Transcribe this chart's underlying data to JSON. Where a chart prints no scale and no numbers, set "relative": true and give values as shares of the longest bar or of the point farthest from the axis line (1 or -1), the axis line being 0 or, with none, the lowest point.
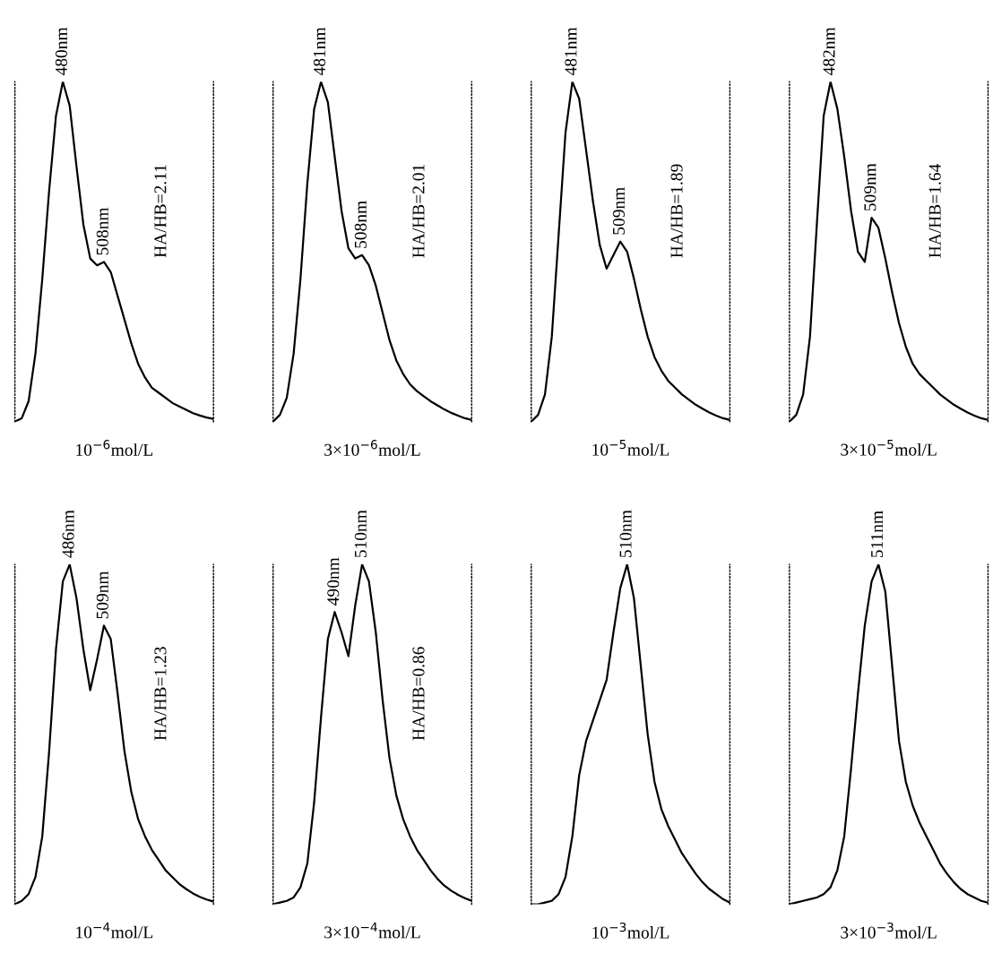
{
  "chart_data": [
    {
      "type": "line",
      "relative": true,
      "xlabel": "10$^{−6}$mol/L",
      "categories": [
        null,
        null,
        null,
        null,
        null,
        null,
        null,
        null,
        null,
        null,
        null,
        null,
        null,
        null,
        null,
        null,
        null,
        null,
        null,
        null,
        null,
        null,
        null,
        null,
        null,
        null,
        null,
        null,
        null,
        null
      ],
      "series": [
        {
          "color": "#000000",
          "values": [
            0,
            0.01,
            0.06,
            0.2,
            0.42,
            0.68,
            0.9,
            1.0,
            0.93,
            0.75,
            0.58,
            0.48,
            0.46,
            0.47,
            0.44,
            0.37,
            0.3,
            0.23,
            0.17,
            0.13,
            0.1,
            0.085,
            0.07,
            0.055,
            0.045,
            0.035,
            0.025,
            0.018,
            0.012,
            0.008
          ]
        }
      ],
      "annotations": [
        {
          "text": "480nm",
          "y": 1.0
        },
        {
          "text": "508nm",
          "y": 0.47
        },
        "HA/HB=2.11"
      ]
    },
    {
      "type": "line",
      "relative": true,
      "xlabel": "3×10$^{−6}$mol/L",
      "categories": [
        null,
        null,
        null,
        null,
        null,
        null,
        null,
        null,
        null,
        null,
        null,
        null,
        null,
        null,
        null,
        null,
        null,
        null,
        null,
        null,
        null,
        null,
        null,
        null,
        null,
        null,
        null,
        null,
        null,
        null
      ],
      "series": [
        {
          "color": "#000000",
          "values": [
            0,
            0.02,
            0.07,
            0.2,
            0.42,
            0.7,
            0.92,
            1.0,
            0.94,
            0.78,
            0.62,
            0.51,
            0.48,
            0.49,
            0.46,
            0.4,
            0.32,
            0.24,
            0.18,
            0.14,
            0.11,
            0.09,
            0.075,
            0.06,
            0.048,
            0.036,
            0.026,
            0.018,
            0.01,
            0.005
          ]
        }
      ],
      "annotations": [
        {
          "text": "481nm",
          "y": 1.0
        },
        {
          "text": "508nm",
          "y": 0.49
        },
        "HA/HB=2.01"
      ]
    },
    {
      "type": "line",
      "relative": true,
      "xlabel": "10$^{−5}$mol/L",
      "categories": [
        null,
        null,
        null,
        null,
        null,
        null,
        null,
        null,
        null,
        null,
        null,
        null,
        null,
        null,
        null,
        null,
        null,
        null,
        null,
        null,
        null,
        null,
        null,
        null,
        null,
        null,
        null,
        null,
        null,
        null
      ],
      "series": [
        {
          "color": "#000000",
          "values": [
            0,
            0.02,
            0.08,
            0.25,
            0.55,
            0.85,
            1.0,
            0.95,
            0.8,
            0.65,
            0.52,
            0.45,
            0.49,
            0.53,
            0.5,
            0.42,
            0.33,
            0.25,
            0.19,
            0.15,
            0.12,
            0.1,
            0.08,
            0.065,
            0.05,
            0.038,
            0.027,
            0.018,
            0.01,
            0.005
          ]
        }
      ],
      "annotations": [
        {
          "text": "481nm",
          "y": 1.0
        },
        {
          "text": "509nm",
          "y": 0.53
        },
        "HA/HB=1.89"
      ]
    },
    {
      "type": "line",
      "relative": true,
      "xlabel": "3×10$^{−5}$mol/L",
      "categories": [
        null,
        null,
        null,
        null,
        null,
        null,
        null,
        null,
        null,
        null,
        null,
        null,
        null,
        null,
        null,
        null,
        null,
        null,
        null,
        null,
        null,
        null,
        null,
        null,
        null,
        null,
        null,
        null,
        null,
        null
      ],
      "series": [
        {
          "color": "#000000",
          "values": [
            0,
            0.02,
            0.08,
            0.25,
            0.58,
            0.9,
            1.0,
            0.92,
            0.78,
            0.62,
            0.5,
            0.47,
            0.6,
            0.57,
            0.48,
            0.38,
            0.29,
            0.22,
            0.17,
            0.14,
            0.12,
            0.1,
            0.08,
            0.065,
            0.05,
            0.038,
            0.027,
            0.018,
            0.01,
            0.005
          ]
        }
      ],
      "annotations": [
        {
          "text": "482nm",
          "y": 1.0
        },
        {
          "text": "509nm",
          "y": 0.6
        },
        "HA/HB=1.64"
      ]
    },
    {
      "type": "line",
      "relative": true,
      "xlabel": "10$^{−4}$mol/L",
      "categories": [
        null,
        null,
        null,
        null,
        null,
        null,
        null,
        null,
        null,
        null,
        null,
        null,
        null,
        null,
        null,
        null,
        null,
        null,
        null,
        null,
        null,
        null,
        null,
        null,
        null,
        null,
        null,
        null,
        null,
        null
      ],
      "series": [
        {
          "color": "#000000",
          "values": [
            0,
            0.01,
            0.03,
            0.08,
            0.2,
            0.45,
            0.75,
            0.95,
            1.0,
            0.9,
            0.75,
            0.63,
            0.72,
            0.82,
            0.78,
            0.62,
            0.45,
            0.33,
            0.25,
            0.2,
            0.16,
            0.13,
            0.1,
            0.08,
            0.06,
            0.045,
            0.032,
            0.022,
            0.014,
            0.008
          ]
        }
      ],
      "annotations": [
        {
          "text": "486nm",
          "y": 1.0
        },
        {
          "text": "509nm",
          "y": 0.82
        },
        "HA/HB=1.23"
      ]
    },
    {
      "type": "line",
      "relative": true,
      "xlabel": "3×10$^{−4}$mol/L",
      "categories": [
        null,
        null,
        null,
        null,
        null,
        null,
        null,
        null,
        null,
        null,
        null,
        null,
        null,
        null,
        null,
        null,
        null,
        null,
        null,
        null,
        null,
        null,
        null,
        null,
        null,
        null,
        null,
        null,
        null,
        null
      ],
      "series": [
        {
          "color": "#000000",
          "values": [
            0,
            0.005,
            0.01,
            0.02,
            0.05,
            0.12,
            0.3,
            0.55,
            0.78,
            0.86,
            0.8,
            0.73,
            0.88,
            1.0,
            0.95,
            0.8,
            0.6,
            0.43,
            0.32,
            0.25,
            0.2,
            0.16,
            0.13,
            0.1,
            0.075,
            0.055,
            0.04,
            0.028,
            0.018,
            0.01
          ]
        }
      ],
      "annotations": [
        {
          "text": "490nm",
          "y": 0.86
        },
        {
          "text": "510nm",
          "y": 1.0
        },
        "HA/HB=0.86"
      ]
    },
    {
      "type": "line",
      "relative": true,
      "xlabel": "10$^{−3}$mol/L",
      "categories": [
        null,
        null,
        null,
        null,
        null,
        null,
        null,
        null,
        null,
        null,
        null,
        null,
        null,
        null,
        null,
        null,
        null,
        null,
        null,
        null,
        null,
        null,
        null,
        null,
        null,
        null,
        null,
        null,
        null,
        null
      ],
      "series": [
        {
          "color": "#000000",
          "values": [
            0,
            0,
            0.005,
            0.01,
            0.03,
            0.08,
            0.2,
            0.38,
            0.48,
            0.54,
            0.6,
            0.66,
            0.8,
            0.93,
            1.0,
            0.9,
            0.7,
            0.5,
            0.36,
            0.28,
            0.23,
            0.19,
            0.15,
            0.12,
            0.09,
            0.065,
            0.045,
            0.03,
            0.015,
            0.005
          ]
        }
      ],
      "annotations": [
        {
          "text": "510nm",
          "y": 1.0
        }
      ]
    },
    {
      "type": "line",
      "relative": true,
      "xlabel": "3×10$^{−3}$mol/L",
      "categories": [
        null,
        null,
        null,
        null,
        null,
        null,
        null,
        null,
        null,
        null,
        null,
        null,
        null,
        null,
        null,
        null,
        null,
        null,
        null,
        null,
        null,
        null,
        null,
        null,
        null,
        null,
        null,
        null,
        null,
        null
      ],
      "series": [
        {
          "color": "#000000",
          "values": [
            0,
            0.005,
            0.01,
            0.015,
            0.02,
            0.03,
            0.05,
            0.1,
            0.2,
            0.4,
            0.62,
            0.82,
            0.95,
            1.0,
            0.92,
            0.7,
            0.48,
            0.36,
            0.29,
            0.24,
            0.2,
            0.16,
            0.12,
            0.09,
            0.065,
            0.045,
            0.03,
            0.02,
            0.01,
            0.005
          ]
        }
      ],
      "annotations": [
        {
          "text": "511nm",
          "y": 1.0
        }
      ]
    }
  ]
}
